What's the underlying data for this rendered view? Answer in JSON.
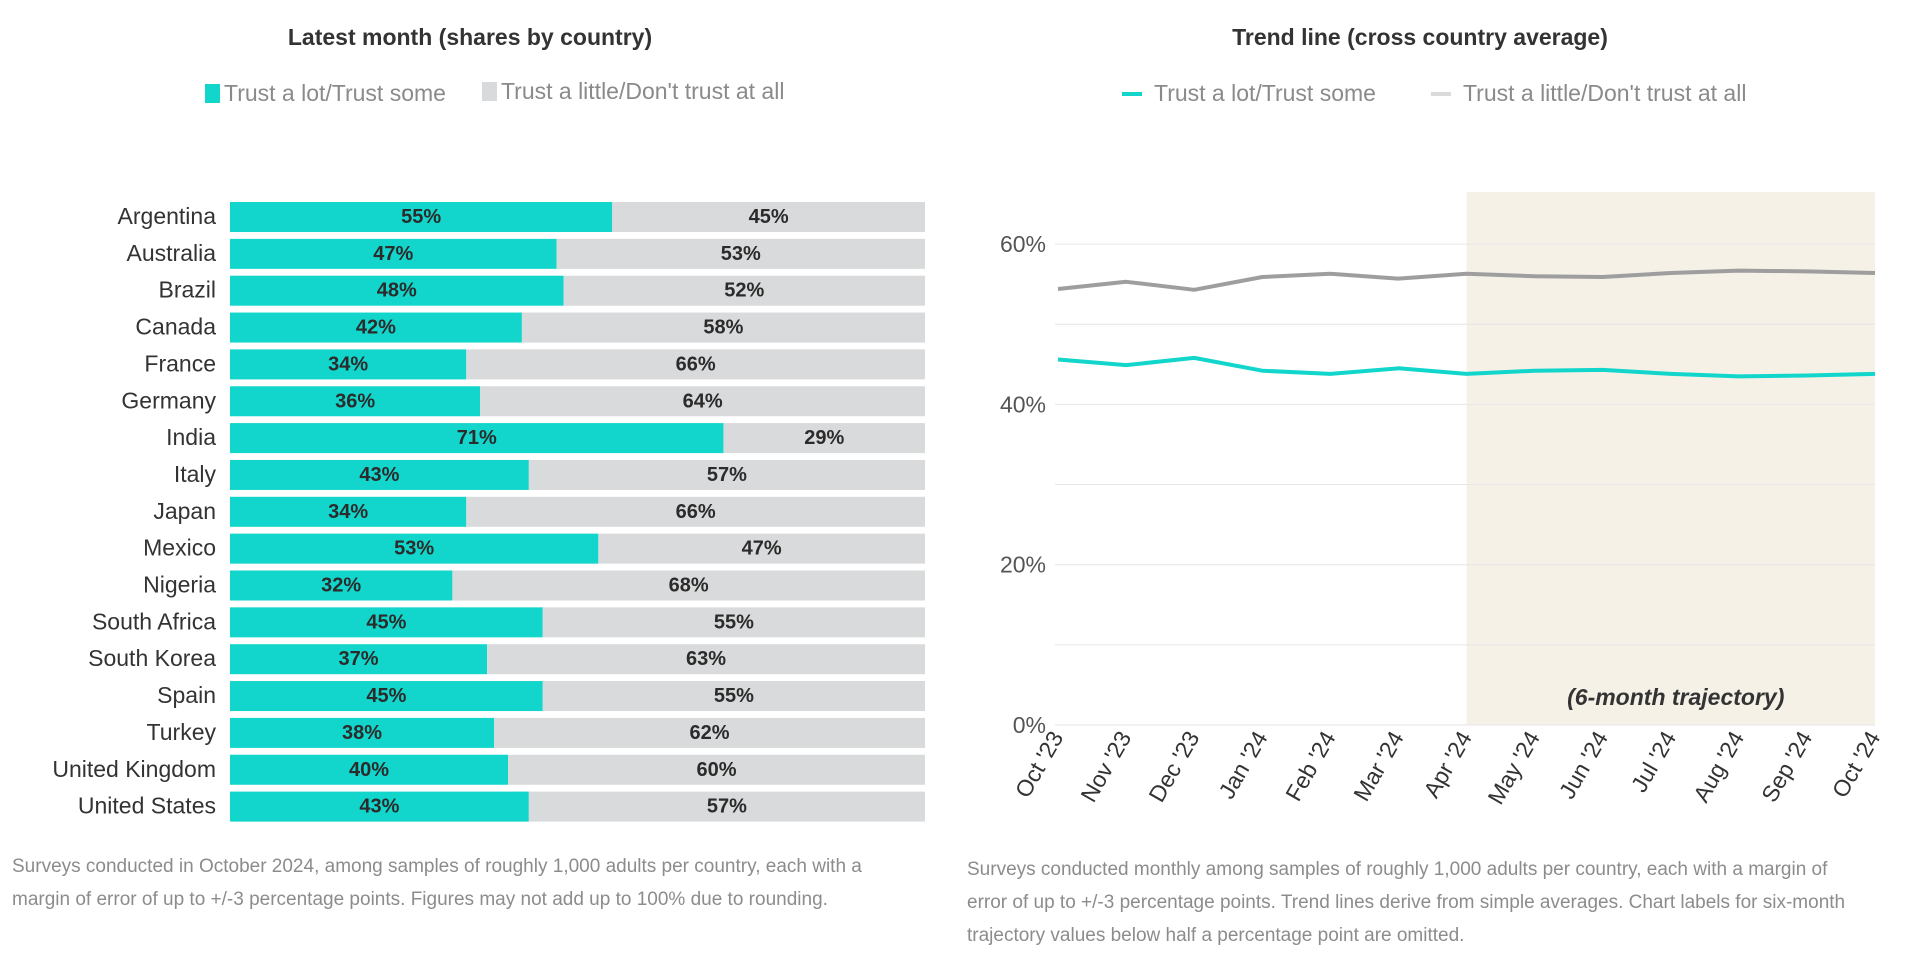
{
  "colors": {
    "trust": "#12d6cb",
    "distrust": "#d9dadb",
    "distrust_line": "#9e9e9e",
    "highlight": "#f5f1e6"
  },
  "left": {
    "title": "Latest month (shares by country)",
    "legend": [
      "Trust a lot/Trust some",
      "Trust a little/Don't trust at all"
    ],
    "note_lines": [
      "Surveys conducted in October 2024, among samples of roughly 1,000 adults per country, each with a",
      "margin of error of up to +/-3 percentage points. Figures may not add up to 100% due to rounding."
    ]
  },
  "right": {
    "title": "Trend line (cross country average)",
    "legend": [
      "Trust a lot/Trust some",
      "Trust a little/Don't trust at all"
    ],
    "note_lines": [
      "Surveys conducted monthly among samples of roughly 1,000 adults per country, each with a margin of",
      "error of up to +/-3 percentage points. Trend lines derive from simple averages. Chart labels for six-month",
      "trajectory values below half a percentage point are omitted."
    ],
    "highlight_label": "(6-month trajectory)"
  },
  "chart_data": [
    {
      "type": "bar",
      "stacked": true,
      "orientation": "horizontal",
      "title": "Latest month (shares by country)",
      "categories": [
        "Argentina",
        "Australia",
        "Brazil",
        "Canada",
        "France",
        "Germany",
        "India",
        "Italy",
        "Japan",
        "Mexico",
        "Nigeria",
        "South Africa",
        "South Korea",
        "Spain",
        "Turkey",
        "United Kingdom",
        "United States"
      ],
      "series": [
        {
          "name": "Trust a lot/Trust some",
          "values": [
            55,
            47,
            48,
            42,
            34,
            36,
            71,
            43,
            34,
            53,
            32,
            45,
            37,
            45,
            38,
            40,
            43
          ]
        },
        {
          "name": "Trust a little/Don't trust at all",
          "values": [
            45,
            53,
            52,
            58,
            66,
            64,
            29,
            57,
            66,
            47,
            68,
            55,
            63,
            55,
            62,
            60,
            57
          ]
        }
      ],
      "value_suffix": "%",
      "xlim": [
        0,
        100
      ]
    },
    {
      "type": "line",
      "title": "Trend line (cross country average)",
      "x": [
        "Oct '23",
        "Nov '23",
        "Dec '23",
        "Jan '24",
        "Feb '24",
        "Mar '24",
        "Apr '24",
        "May '24",
        "Jun '24",
        "Jul '24",
        "Aug '24",
        "Sep '24",
        "Oct '24"
      ],
      "series": [
        {
          "name": "Trust a lot/Trust some",
          "values": [
            45.6,
            44.9,
            45.8,
            44.2,
            43.8,
            44.5,
            43.8,
            44.2,
            44.3,
            43.8,
            43.5,
            43.6,
            43.8
          ]
        },
        {
          "name": "Trust a little/Don't trust at all",
          "values": [
            54.4,
            55.3,
            54.3,
            55.9,
            56.3,
            55.7,
            56.3,
            56.0,
            55.9,
            56.4,
            56.7,
            56.6,
            56.4
          ]
        }
      ],
      "yticks": [
        "0%",
        "20%",
        "40%",
        "60%"
      ],
      "ylim": [
        0,
        67
      ],
      "grid": true,
      "highlight_range": [
        "Apr '24",
        "Oct '24"
      ],
      "legend_position": "top"
    }
  ]
}
